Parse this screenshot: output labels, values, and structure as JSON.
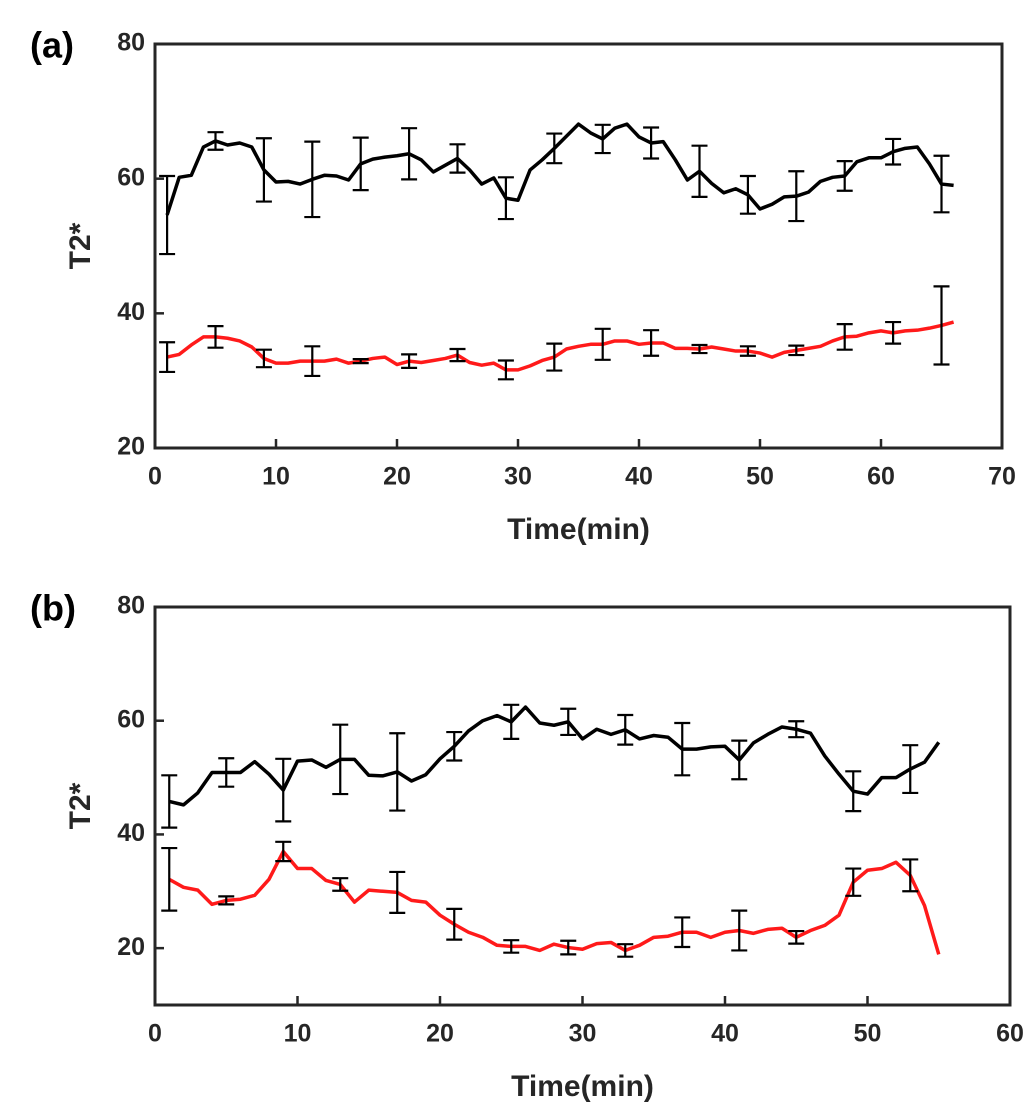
{
  "chart_data": [
    {
      "type": "line",
      "label": "(a)",
      "xlabel": "Time(min)",
      "ylabel": "T2*",
      "xlim": [
        0,
        70
      ],
      "xticks": [
        0,
        10,
        20,
        30,
        40,
        50,
        60,
        70
      ],
      "ylim": [
        20,
        80
      ],
      "yticks": [
        20,
        40,
        60,
        80
      ],
      "x": [
        1,
        2,
        3,
        4,
        5,
        6,
        7,
        8,
        9,
        10,
        11,
        12,
        13,
        14,
        15,
        16,
        17,
        18,
        19,
        20,
        21,
        22,
        23,
        24,
        25,
        26,
        27,
        28,
        29,
        30,
        31,
        32,
        33,
        34,
        35,
        36,
        37,
        38,
        39,
        40,
        41,
        42,
        43,
        44,
        45,
        46,
        47,
        48,
        49,
        50,
        51,
        52,
        53,
        54,
        55,
        56,
        57,
        58,
        59,
        60,
        61,
        62,
        63,
        64,
        65,
        66
      ],
      "series": [
        {
          "color": "#000000",
          "values": [
            54.6,
            60.2,
            60.5,
            64.7,
            65.6,
            65,
            65.3,
            64.7,
            61.3,
            59.5,
            59.6,
            59.2,
            59.9,
            60.5,
            60.4,
            59.8,
            62.2,
            62.9,
            63.2,
            63.4,
            63.7,
            62.8,
            61,
            62,
            63,
            61.3,
            59.2,
            60.1,
            57.1,
            56.8,
            61.3,
            62.8,
            64.5,
            66.3,
            68.1,
            66.8,
            65.9,
            67.5,
            68.1,
            66.2,
            65.3,
            65.5,
            62.8,
            59.8,
            61.1,
            59.3,
            57.9,
            58.5,
            57.6,
            55.5,
            56.2,
            57.3,
            57.4,
            58,
            59.6,
            60.2,
            60.4,
            62.5,
            63.1,
            63.1,
            64,
            64.5,
            64.7,
            62.2,
            59.2,
            59
          ],
          "errors": [
            5.8,
            null,
            null,
            null,
            1.3,
            null,
            null,
            null,
            4.7,
            null,
            null,
            null,
            5.6,
            null,
            null,
            null,
            3.9,
            null,
            null,
            null,
            3.8,
            null,
            null,
            null,
            2.1,
            null,
            null,
            null,
            3.1,
            null,
            null,
            null,
            2.2,
            null,
            null,
            null,
            2.1,
            null,
            null,
            null,
            2.3,
            null,
            null,
            null,
            3.8,
            null,
            null,
            null,
            2.8,
            null,
            null,
            null,
            3.7,
            null,
            null,
            null,
            2.2,
            null,
            null,
            null,
            1.9,
            null,
            null,
            null,
            4.2,
            null
          ]
        },
        {
          "color": "#ff1a1a",
          "values": [
            33.5,
            33.9,
            35.3,
            36.5,
            36.5,
            36.3,
            35.9,
            35,
            33.3,
            32.6,
            32.6,
            32.9,
            32.9,
            32.9,
            33.2,
            32.6,
            32.9,
            33.3,
            33.5,
            32.4,
            32.9,
            32.7,
            33,
            33.3,
            33.8,
            32.7,
            32.3,
            32.6,
            31.6,
            31.6,
            32.2,
            33,
            33.5,
            34.7,
            35.1,
            35.4,
            35.4,
            35.9,
            35.9,
            35.4,
            35.6,
            35.6,
            34.8,
            34.8,
            34.7,
            35,
            34.7,
            34.4,
            34.4,
            34.1,
            33.5,
            34.2,
            34.5,
            34.8,
            35.1,
            35.9,
            36.5,
            36.6,
            37.1,
            37.4,
            37.1,
            37.4,
            37.5,
            37.8,
            38.2,
            38.7
          ],
          "errors": [
            2.2,
            null,
            null,
            null,
            1.6,
            null,
            null,
            null,
            1.3,
            null,
            null,
            null,
            2.2,
            null,
            null,
            null,
            0.3,
            null,
            null,
            null,
            1,
            null,
            null,
            null,
            0.9,
            null,
            null,
            null,
            1.4,
            null,
            null,
            null,
            2,
            null,
            null,
            null,
            2.3,
            null,
            null,
            null,
            1.9,
            null,
            null,
            null,
            0.6,
            null,
            null,
            null,
            0.7,
            null,
            null,
            null,
            0.7,
            null,
            null,
            null,
            1.9,
            null,
            null,
            null,
            1.6,
            null,
            null,
            null,
            5.8,
            null
          ]
        }
      ]
    },
    {
      "type": "line",
      "label": "(b)",
      "xlabel": "Time(min)",
      "ylabel": "T2*",
      "xlim": [
        0,
        60
      ],
      "xticks": [
        0,
        10,
        20,
        30,
        40,
        50,
        60
      ],
      "ylim": [
        10,
        80
      ],
      "yticks": [
        20,
        40,
        60,
        80
      ],
      "x": [
        1,
        2,
        3,
        4,
        5,
        6,
        7,
        8,
        9,
        10,
        11,
        12,
        13,
        14,
        15,
        16,
        17,
        18,
        19,
        20,
        21,
        22,
        23,
        24,
        25,
        26,
        27,
        28,
        29,
        30,
        31,
        32,
        33,
        34,
        35,
        36,
        37,
        38,
        39,
        40,
        41,
        42,
        43,
        44,
        45,
        46,
        47,
        48,
        49,
        50,
        51,
        52,
        53,
        54,
        55
      ],
      "series": [
        {
          "color": "#000000",
          "values": [
            45.8,
            45.2,
            47.3,
            50.9,
            50.9,
            50.9,
            52.8,
            50.6,
            47.8,
            52.9,
            53.1,
            51.8,
            53.2,
            53.2,
            50.4,
            50.3,
            51,
            49.4,
            50.5,
            53.3,
            55.5,
            58.2,
            60,
            60.9,
            59.8,
            62.4,
            59.6,
            59.2,
            59.8,
            56.8,
            58.5,
            57.6,
            58.4,
            56.8,
            57.4,
            57.1,
            55,
            55,
            55.4,
            55.5,
            53.1,
            56.1,
            57.6,
            58.9,
            58.5,
            57.8,
            53.8,
            50.6,
            47.6,
            47.1,
            50,
            50,
            51.5,
            52.7,
            56.2
          ],
          "errors": [
            4.6,
            null,
            null,
            null,
            2.5,
            null,
            null,
            null,
            5.5,
            null,
            null,
            null,
            6.1,
            null,
            null,
            null,
            6.8,
            null,
            null,
            null,
            2.5,
            null,
            null,
            null,
            3,
            null,
            null,
            null,
            2.3,
            null,
            null,
            null,
            2.6,
            null,
            null,
            null,
            4.6,
            null,
            null,
            null,
            3.4,
            null,
            null,
            null,
            1.4,
            null,
            null,
            null,
            3.5,
            null,
            null,
            null,
            4.2,
            null,
            null
          ]
        },
        {
          "color": "#ff1a1a",
          "values": [
            32.1,
            30.7,
            30.2,
            27.7,
            28.4,
            28.6,
            29.3,
            32.1,
            37,
            34,
            34,
            31.9,
            31.2,
            28.1,
            30.2,
            30,
            29.8,
            28.4,
            28.1,
            25.8,
            24.2,
            22.8,
            21.9,
            20.5,
            20.3,
            20.3,
            19.6,
            20.7,
            20.1,
            19.8,
            20.8,
            21,
            19.6,
            20.5,
            21.9,
            22.1,
            22.8,
            22.8,
            21.9,
            22.8,
            23.1,
            22.6,
            23.3,
            23.5,
            21.9,
            23.1,
            24,
            25.8,
            31.6,
            33.7,
            34,
            35.1,
            32.8,
            27.5,
            18.9
          ],
          "errors": [
            5.5,
            null,
            null,
            null,
            0.7,
            null,
            null,
            null,
            1.7,
            null,
            null,
            null,
            1.1,
            null,
            null,
            null,
            3.6,
            null,
            null,
            null,
            2.7,
            null,
            null,
            null,
            1.1,
            null,
            null,
            null,
            1.2,
            null,
            null,
            null,
            1.1,
            null,
            null,
            null,
            2.6,
            null,
            null,
            null,
            3.5,
            null,
            null,
            null,
            1.1,
            null,
            null,
            null,
            2.4,
            null,
            null,
            null,
            2.8,
            null,
            null
          ]
        }
      ]
    }
  ]
}
